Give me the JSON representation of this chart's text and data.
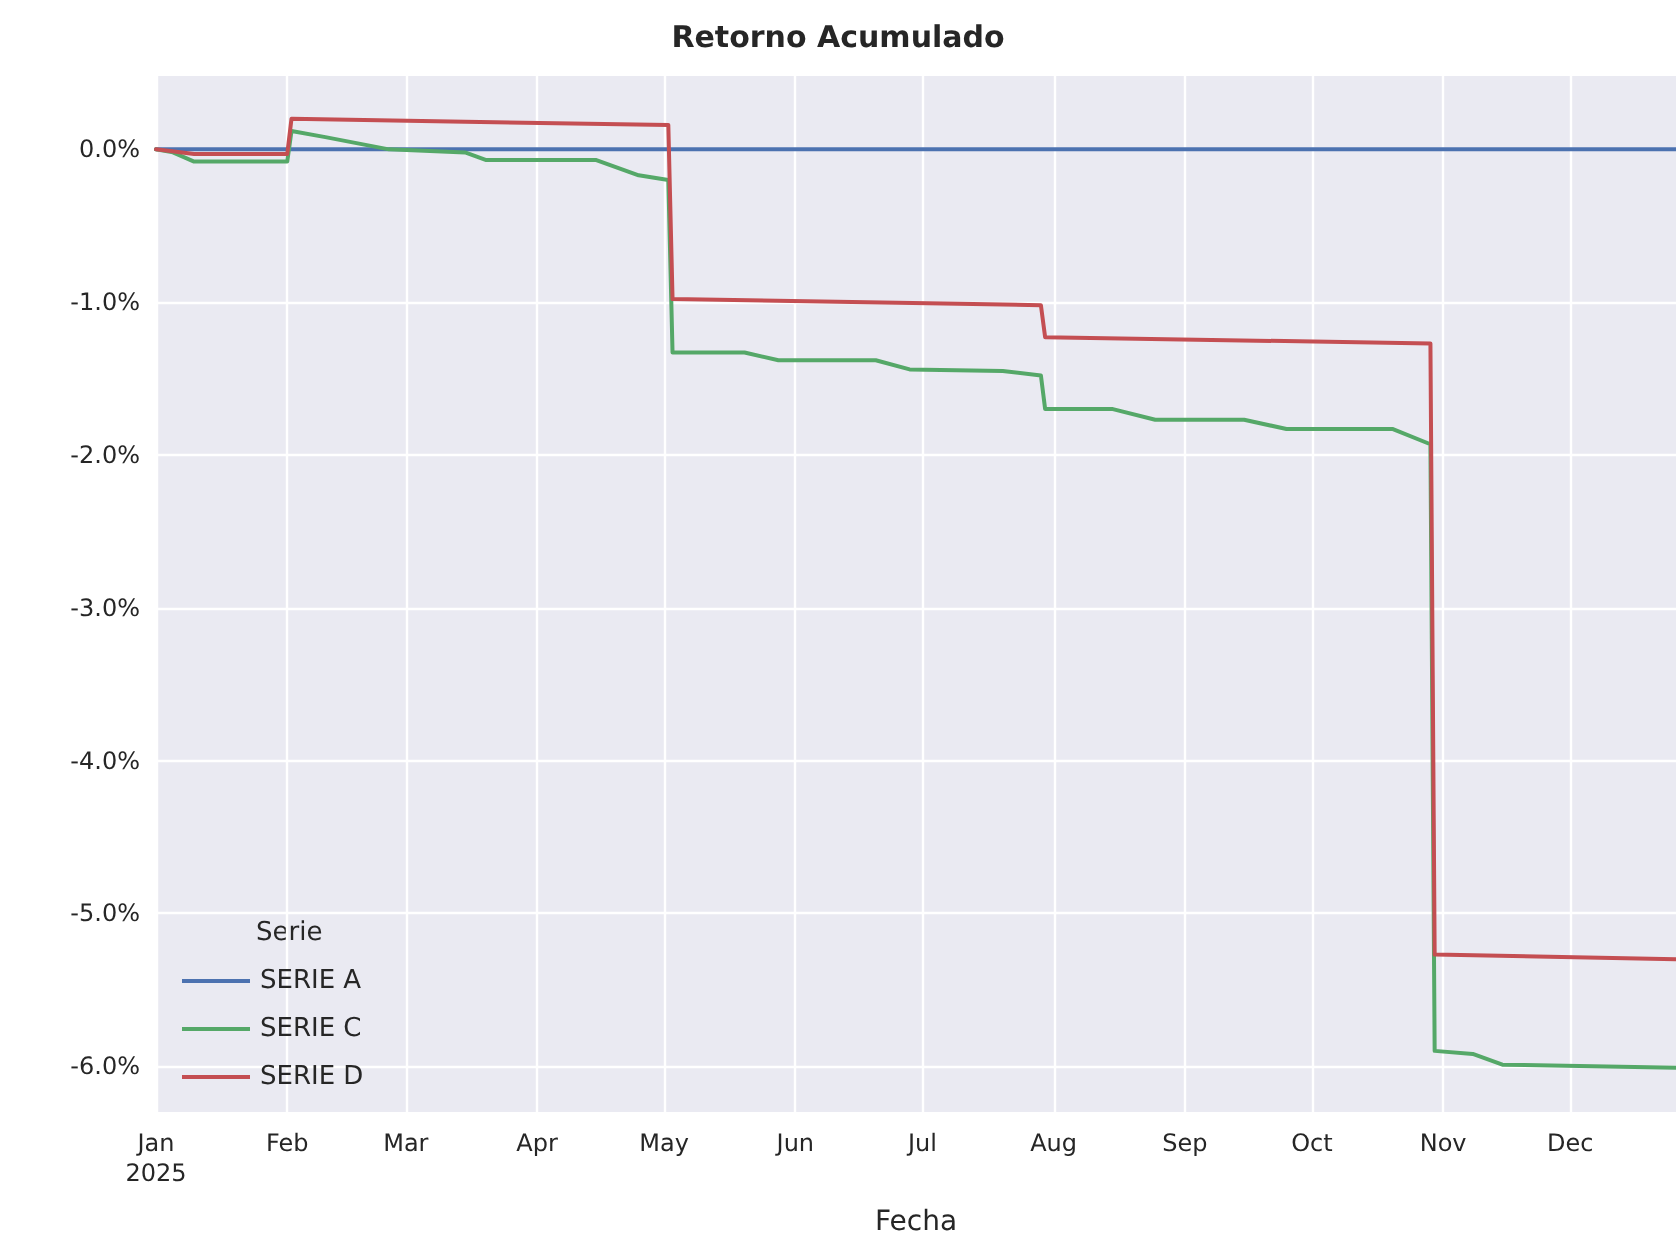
{
  "chart_data": {
    "type": "line",
    "title": "Retorno Acumulado",
    "xlabel": "Fecha",
    "legend_title": "Serie",
    "legend": "bottom left",
    "grid": true,
    "xlim": [
      "2025-01-01",
      "2025-12-26"
    ],
    "xticks": [
      {
        "value": "2025-01-01",
        "label": "Jan\n2025"
      },
      {
        "value": "2025-02-01",
        "label": "Feb"
      },
      {
        "value": "2025-03-01",
        "label": "Mar"
      },
      {
        "value": "2025-04-01",
        "label": "Apr"
      },
      {
        "value": "2025-05-01",
        "label": "May"
      },
      {
        "value": "2025-06-01",
        "label": "Jun"
      },
      {
        "value": "2025-07-01",
        "label": "Jul"
      },
      {
        "value": "2025-08-01",
        "label": "Aug"
      },
      {
        "value": "2025-09-01",
        "label": "Sep"
      },
      {
        "value": "2025-10-01",
        "label": "Oct"
      },
      {
        "value": "2025-11-01",
        "label": "Nov"
      },
      {
        "value": "2025-12-01",
        "label": "Dec"
      }
    ],
    "ylim": [
      -6.3,
      0.48
    ],
    "yticks": [
      {
        "value": -6,
        "label": "-6.0%"
      },
      {
        "value": -5,
        "label": "-5.0%"
      },
      {
        "value": -4,
        "label": "-4.0%"
      },
      {
        "value": -3,
        "label": "-3.0%"
      },
      {
        "value": -2,
        "label": "-2.0%"
      },
      {
        "value": -1,
        "label": "-1.0%"
      },
      {
        "value": 0,
        "label": "0.0%"
      }
    ],
    "series": [
      {
        "name": "SERIE A",
        "color": "#4c72b0",
        "x": [
          "2025-01-01",
          "2025-12-26"
        ],
        "values": [
          0,
          0
        ]
      },
      {
        "name": "SERIE C",
        "color": "#55a868",
        "x": [
          "2025-01-01",
          "2025-01-05",
          "2025-01-10",
          "2025-02-01",
          "2025-02-02",
          "2025-02-10",
          "2025-02-25",
          "2025-03-15",
          "2025-03-20",
          "2025-04-15",
          "2025-04-25",
          "2025-05-02",
          "2025-05-03",
          "2025-05-20",
          "2025-05-28",
          "2025-06-20",
          "2025-06-28",
          "2025-07-20",
          "2025-07-29",
          "2025-07-30",
          "2025-08-15",
          "2025-08-25",
          "2025-09-15",
          "2025-09-25",
          "2025-10-20",
          "2025-10-29",
          "2025-10-30",
          "2025-11-08",
          "2025-11-15",
          "2025-12-26"
        ],
        "values": [
          0,
          -0.02,
          -0.08,
          -0.08,
          0.12,
          0.08,
          0.0,
          -0.02,
          -0.07,
          -0.07,
          -0.17,
          -0.2,
          -1.33,
          -1.33,
          -1.38,
          -1.38,
          -1.44,
          -1.45,
          -1.48,
          -1.7,
          -1.7,
          -1.77,
          -1.77,
          -1.83,
          -1.83,
          -1.93,
          -5.9,
          -5.92,
          -5.99,
          -6.01
        ]
      },
      {
        "name": "SERIE D",
        "color": "#c44e52",
        "x": [
          "2025-01-01",
          "2025-01-10",
          "2025-02-01",
          "2025-02-02",
          "2025-03-15",
          "2025-05-02",
          "2025-05-03",
          "2025-07-29",
          "2025-07-30",
          "2025-10-29",
          "2025-10-30",
          "2025-12-26"
        ],
        "values": [
          0,
          -0.03,
          -0.03,
          0.2,
          0.18,
          0.16,
          -0.98,
          -1.02,
          -1.23,
          -1.27,
          -5.27,
          -5.3
        ]
      }
    ]
  }
}
